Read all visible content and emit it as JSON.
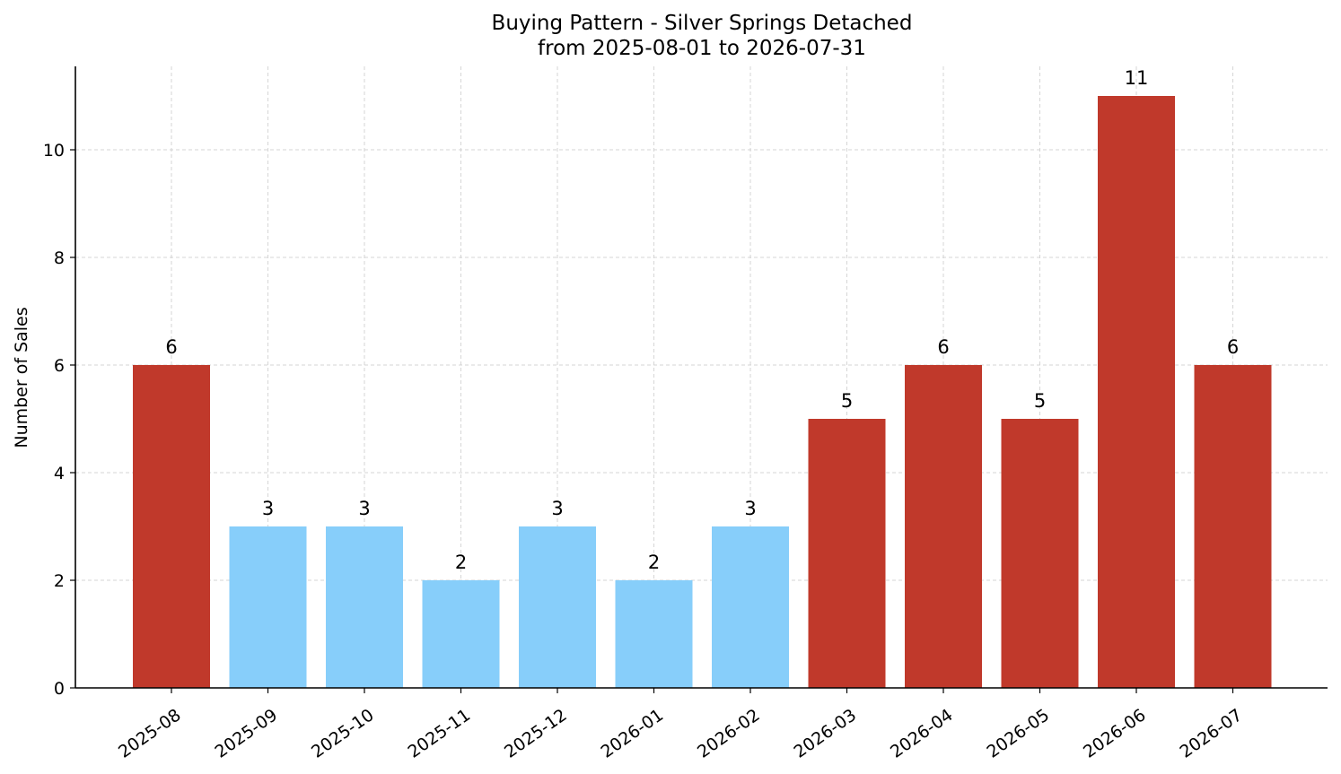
{
  "chart_data": {
    "type": "bar",
    "title": "Buying Pattern - Silver Springs Detached",
    "subtitle": "from 2025-08-01 to 2026-07-31",
    "xlabel": "",
    "ylabel": "Number of Sales",
    "categories": [
      "2025-08",
      "2025-09",
      "2025-10",
      "2025-11",
      "2025-12",
      "2026-01",
      "2026-02",
      "2026-03",
      "2026-04",
      "2026-05",
      "2026-06",
      "2026-07"
    ],
    "values": [
      6,
      3,
      3,
      2,
      3,
      2,
      3,
      5,
      6,
      5,
      11,
      6
    ],
    "bar_colors": [
      "#c0392b",
      "#87cefa",
      "#87cefa",
      "#87cefa",
      "#87cefa",
      "#87cefa",
      "#87cefa",
      "#c0392b",
      "#c0392b",
      "#c0392b",
      "#c0392b",
      "#c0392b"
    ],
    "ylim": [
      0,
      11.55
    ],
    "yticks": [
      0,
      2,
      4,
      6,
      8,
      10
    ],
    "grid": true,
    "show_value_labels": true,
    "spines": "left-bottom"
  }
}
